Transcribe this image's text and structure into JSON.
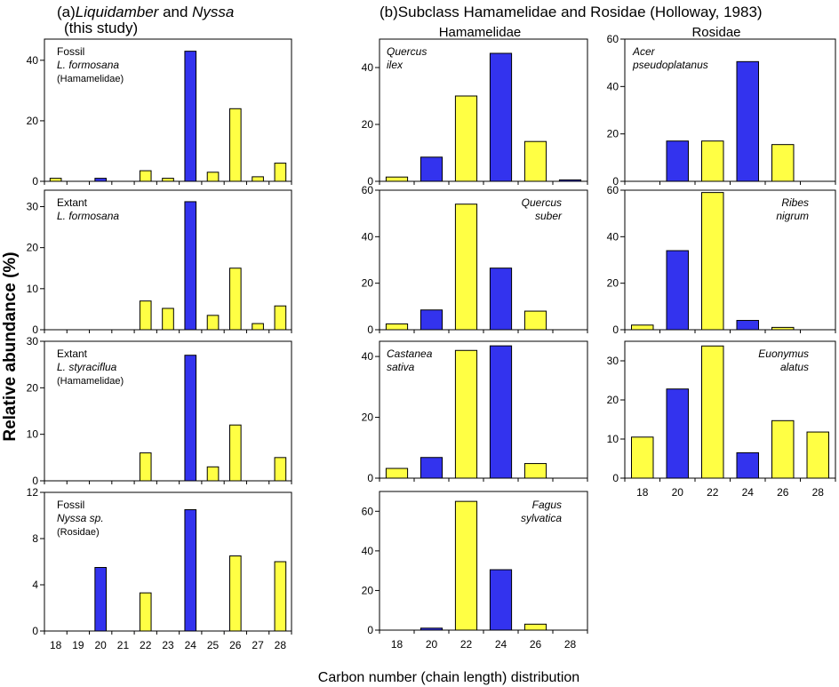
{
  "figure": {
    "panel_a_title": {
      "prefix": "(a)",
      "it1": "Liquidamber",
      "mid": " and ",
      "it2": "Nyssa",
      "line2": "(this study)"
    },
    "panel_b_title": "(b)Subclass Hamamelidae and Rosidae (Holloway, 1983)",
    "col_hamamelidae": "Hamamelidae",
    "col_rosidae": "Rosidae",
    "ylabel": "Relative abundance (%)",
    "xlabel": "Carbon number (chain length) distribution",
    "colors": {
      "blue": "#3333ee",
      "yellow": "#ffff44",
      "stroke": "#000000"
    }
  },
  "chart_data": [
    {
      "type": "bar",
      "id": "a1",
      "label": [
        "Fossil",
        "L. formosana",
        "(Hamamelidae)"
      ],
      "x": [
        18,
        19,
        20,
        21,
        22,
        23,
        24,
        25,
        26,
        27,
        28
      ],
      "ylim": [
        0,
        47
      ],
      "yticks": [
        0,
        20,
        40
      ],
      "values": [
        1,
        0,
        1,
        0,
        3.5,
        1,
        43,
        3,
        24,
        1.5,
        6
      ],
      "colors": [
        "y",
        "y",
        "b",
        "y",
        "y",
        "y",
        "b",
        "y",
        "y",
        "y",
        "y"
      ]
    },
    {
      "type": "bar",
      "id": "a2",
      "label": [
        "Extant",
        "L. formosana"
      ],
      "x": [
        18,
        19,
        20,
        21,
        22,
        23,
        24,
        25,
        26,
        27,
        28
      ],
      "ylim": [
        0,
        34
      ],
      "yticks": [
        0,
        10,
        20,
        30
      ],
      "values": [
        0,
        0,
        0,
        0,
        7,
        5.2,
        31.2,
        3.5,
        15,
        1.5,
        5.8
      ],
      "colors": [
        "y",
        "y",
        "y",
        "y",
        "y",
        "y",
        "b",
        "y",
        "y",
        "y",
        "y"
      ]
    },
    {
      "type": "bar",
      "id": "a3",
      "label": [
        "Extant",
        "L. styraciflua",
        "(Hamamelidae)"
      ],
      "x": [
        18,
        19,
        20,
        21,
        22,
        23,
        24,
        25,
        26,
        27,
        28
      ],
      "ylim": [
        0,
        30
      ],
      "yticks": [
        0,
        10,
        20,
        30
      ],
      "values": [
        0,
        0,
        0,
        0,
        6,
        0,
        27,
        3,
        12,
        0,
        5
      ],
      "colors": [
        "y",
        "y",
        "y",
        "y",
        "y",
        "y",
        "b",
        "y",
        "y",
        "y",
        "y"
      ]
    },
    {
      "type": "bar",
      "id": "a4",
      "label": [
        "Fossil",
        "Nyssa sp.",
        "(Rosidae)"
      ],
      "x": [
        18,
        19,
        20,
        21,
        22,
        23,
        24,
        25,
        26,
        27,
        28
      ],
      "ylim": [
        0,
        12
      ],
      "yticks": [
        0,
        4,
        8,
        12
      ],
      "values": [
        0,
        0,
        5.5,
        0,
        3.3,
        0,
        10.5,
        0,
        6.5,
        0,
        6
      ],
      "colors": [
        "y",
        "y",
        "b",
        "y",
        "y",
        "y",
        "b",
        "y",
        "y",
        "y",
        "y"
      ]
    },
    {
      "type": "bar",
      "id": "h1",
      "label": [
        "Quercus",
        "ilex"
      ],
      "x": [
        18,
        20,
        22,
        24,
        26,
        28
      ],
      "ylim": [
        0,
        50
      ],
      "yticks": [
        0,
        20,
        40
      ],
      "values": [
        1.5,
        8.5,
        30,
        45,
        14,
        0.5
      ],
      "colors": [
        "y",
        "b",
        "y",
        "b",
        "y",
        "b"
      ]
    },
    {
      "type": "bar",
      "id": "h2",
      "label": [
        "Quercus",
        "suber"
      ],
      "x": [
        18,
        20,
        22,
        24,
        26,
        28
      ],
      "ylim": [
        0,
        60
      ],
      "yticks": [
        0,
        20,
        40,
        60
      ],
      "values": [
        2.5,
        8.5,
        54,
        26.5,
        8,
        0
      ],
      "colors": [
        "y",
        "b",
        "y",
        "b",
        "y",
        "y"
      ]
    },
    {
      "type": "bar",
      "id": "h3",
      "label": [
        "Castanea",
        "sativa"
      ],
      "x": [
        18,
        20,
        22,
        24,
        26,
        28
      ],
      "ylim": [
        0,
        45
      ],
      "yticks": [
        0,
        20,
        40
      ],
      "values": [
        3.2,
        6.8,
        42,
        43.5,
        4.8,
        0
      ],
      "colors": [
        "y",
        "b",
        "y",
        "b",
        "y",
        "y"
      ]
    },
    {
      "type": "bar",
      "id": "h4",
      "label": [
        "Fagus",
        "sylvatica"
      ],
      "x": [
        18,
        20,
        22,
        24,
        26,
        28
      ],
      "ylim": [
        0,
        70
      ],
      "yticks": [
        0,
        20,
        40,
        60
      ],
      "values": [
        0,
        1,
        65,
        30.5,
        3,
        0
      ],
      "colors": [
        "y",
        "b",
        "y",
        "b",
        "y",
        "y"
      ]
    },
    {
      "type": "bar",
      "id": "r1",
      "label": [
        "Acer",
        "pseudoplatanus"
      ],
      "x": [
        18,
        20,
        22,
        24,
        26,
        28
      ],
      "ylim": [
        0,
        60
      ],
      "yticks": [
        0,
        20,
        40,
        60
      ],
      "values": [
        0,
        17,
        17,
        50.5,
        15.5,
        0
      ],
      "colors": [
        "y",
        "b",
        "y",
        "b",
        "y",
        "y"
      ]
    },
    {
      "type": "bar",
      "id": "r2",
      "label": [
        "Ribes",
        "nigrum"
      ],
      "x": [
        18,
        20,
        22,
        24,
        26,
        28
      ],
      "ylim": [
        0,
        60
      ],
      "yticks": [
        0,
        20,
        40,
        60
      ],
      "values": [
        2,
        34,
        59,
        4,
        1,
        0
      ],
      "colors": [
        "y",
        "b",
        "y",
        "b",
        "y",
        "y"
      ]
    },
    {
      "type": "bar",
      "id": "r3",
      "label": [
        "Euonymus",
        "alatus"
      ],
      "x": [
        18,
        20,
        22,
        24,
        26,
        28
      ],
      "ylim": [
        0,
        35
      ],
      "yticks": [
        0,
        10,
        20,
        30
      ],
      "values": [
        10.5,
        22.8,
        33.8,
        6.5,
        14.7,
        11.8
      ],
      "colors": [
        "y",
        "b",
        "y",
        "b",
        "y",
        "y"
      ]
    }
  ]
}
